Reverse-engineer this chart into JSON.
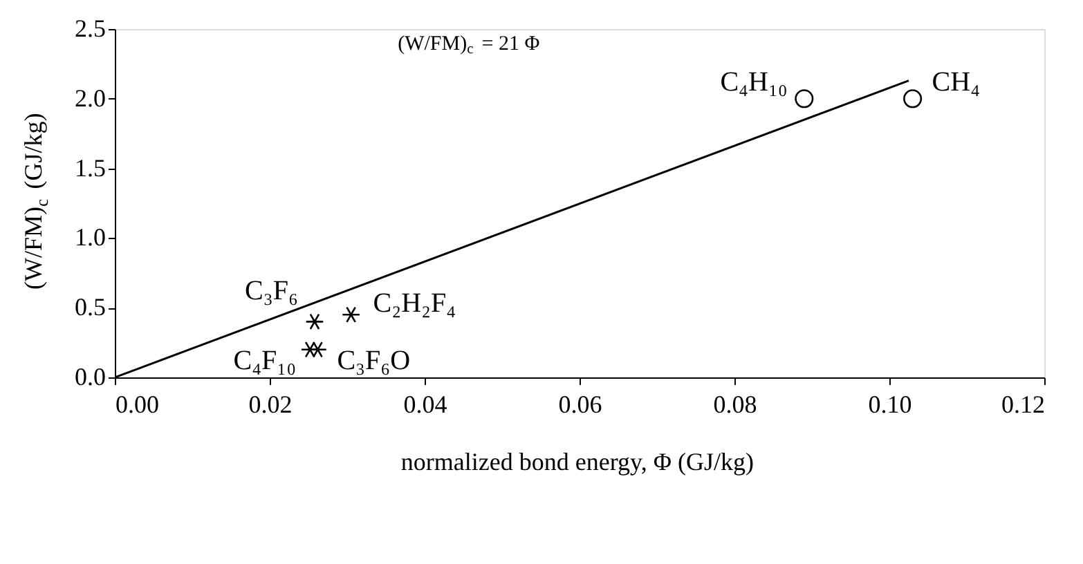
{
  "chart_data": {
    "type": "scatter",
    "xlabel": "normalized bond energy, Φ (GJ/kg)",
    "ylabel": "(W/FM)$_{c}$ (GJ/kg)",
    "series": [
      {
        "marker": "circle",
        "color": "#000000",
        "x": [
          0.089,
          0.103
        ],
        "values": [
          2.0,
          2.0
        ]
      },
      {
        "marker": "cross",
        "color": "#000000",
        "x": [
          0.0258,
          0.0305,
          0.0252,
          0.0262
        ],
        "values": [
          0.4,
          0.45,
          0.2,
          0.2
        ]
      },
      {
        "type": "line",
        "color": "#000000",
        "x": [
          0.0,
          0.1025
        ],
        "values": [
          0.0,
          2.13
        ]
      }
    ],
    "annotations": [
      {
        "text": "C₄H₁₀",
        "x": 0.089,
        "y": 2.0
      },
      {
        "text": "CH₄",
        "x": 0.103,
        "y": 2.0
      },
      {
        "text": "C₃F₆",
        "x": 0.0258,
        "y": 0.4
      },
      {
        "text": "C₂H₂F₄",
        "x": 0.0305,
        "y": 0.45
      },
      {
        "text": "C₄F₁₀",
        "x": 0.0252,
        "y": 0.2
      },
      {
        "text": "C₃F₆O",
        "x": 0.0262,
        "y": 0.2
      },
      "(W/FM)$_{c}$ = 21 Φ"
    ],
    "xlim": [
      0.0,
      0.12
    ],
    "xticks": [
      {
        "value": 0.0,
        "label": "0.00"
      },
      0.02,
      0.04,
      0.06,
      0.08,
      {
        "value": 0.1,
        "label": "0.10"
      },
      0.12
    ],
    "ylim": [
      0.0,
      2.5
    ],
    "yticks": [
      {
        "value": 0.0,
        "label": "0.0"
      },
      0.5,
      {
        "value": 1.0,
        "label": "1.0"
      },
      1.5,
      {
        "value": 2.0,
        "label": "2.0"
      },
      2.5
    ],
    "grid": false
  }
}
